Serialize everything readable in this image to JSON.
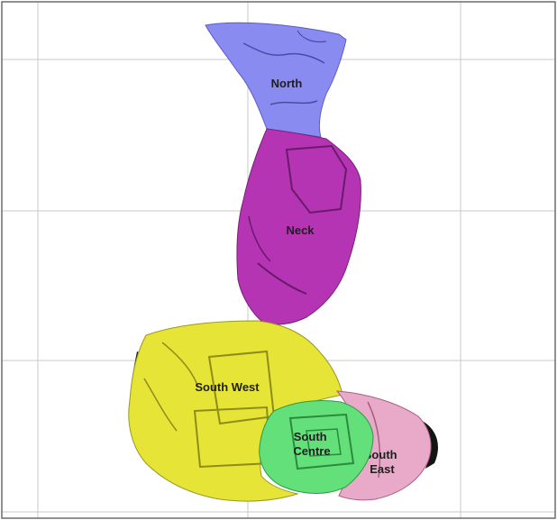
{
  "regions": [
    {
      "id": "north",
      "label_lines": [
        "North"
      ],
      "color": "#8a8bf0"
    },
    {
      "id": "neck",
      "label_lines": [
        "Neck"
      ],
      "color": "#b434b4"
    },
    {
      "id": "south-west",
      "label_lines": [
        "South West"
      ],
      "color": "#e6e436"
    },
    {
      "id": "south-centre",
      "label_lines": [
        "South",
        "Centre"
      ],
      "color": "#63e07a"
    },
    {
      "id": "south-east",
      "label_lines": [
        "South",
        "East"
      ],
      "color": "#e9a9c8"
    }
  ],
  "colors": {
    "grid": "#c8c8c8",
    "frame": "#6c6c6c",
    "outline": "#141414",
    "background": "#ffffff"
  }
}
